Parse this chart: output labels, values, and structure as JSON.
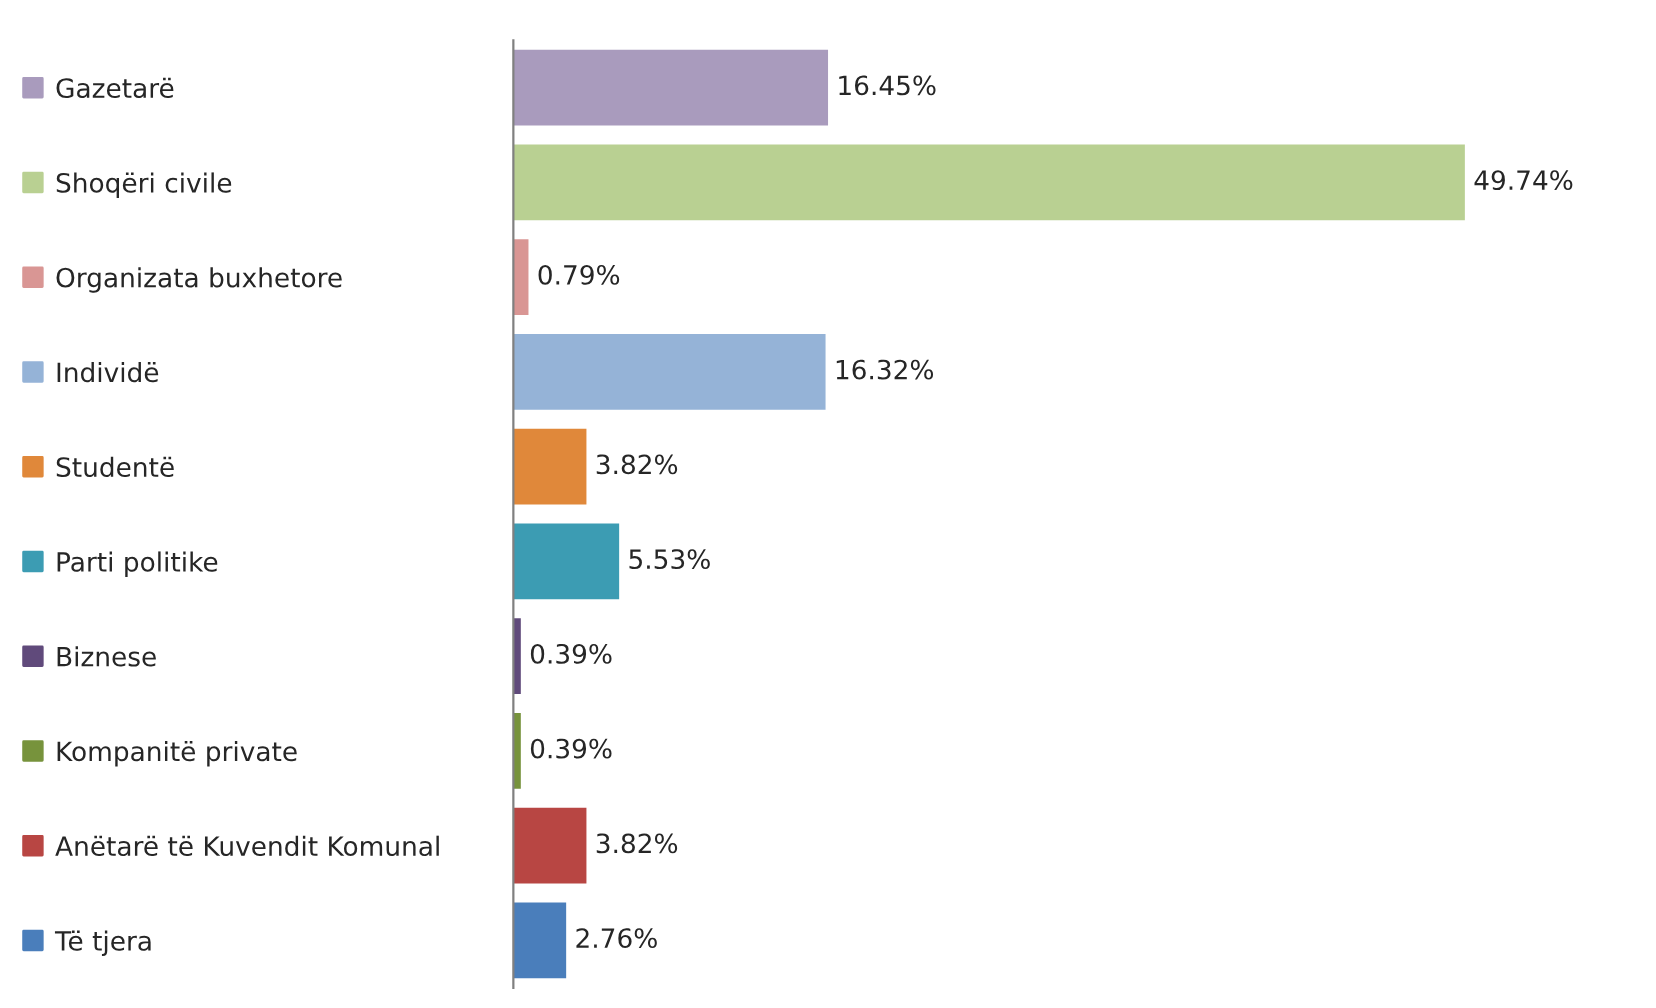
{
  "chart_data": {
    "type": "bar",
    "orientation": "horizontal",
    "grid": false,
    "categories": [
      "Gazetarë",
      "Shoqëri civile",
      "Organizata buxhetore",
      "Individë",
      "Studentë",
      "Parti politike",
      "Biznese",
      "Kompanitë private",
      "Anëtarë të Kuvendit Komunal",
      "Të tjera"
    ],
    "colors": [
      "#a99bbd",
      "#b9d092",
      "#d99694",
      "#95b3d7",
      "#e0883a",
      "#3c9cb3",
      "#604a7b",
      "#77933c",
      "#b84643",
      "#4a7ebb"
    ],
    "values": [
      16.45,
      49.74,
      0.79,
      16.32,
      3.82,
      5.53,
      0.39,
      0.39,
      3.82,
      2.76
    ],
    "value_labels": [
      "16.45%",
      "49.74%",
      "0.79%",
      "16.32%",
      "3.82%",
      "5.53%",
      "0.39%",
      "0.39%",
      "3.82%",
      "2.76%"
    ]
  }
}
